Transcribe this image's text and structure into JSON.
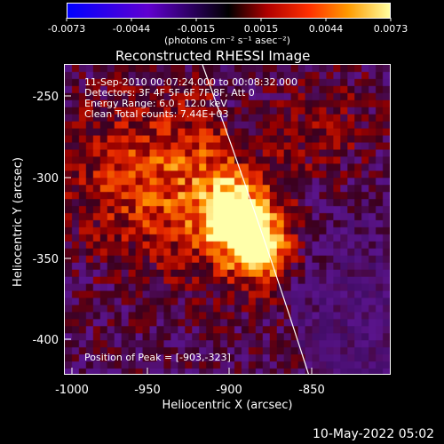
{
  "colorbar": {
    "ticks": [
      "-0.0073",
      "-0.0044",
      "-0.0015",
      "0.0015",
      "0.0044",
      "0.0073"
    ],
    "units": "(photons cm⁻² s⁻¹ asec⁻²)"
  },
  "title": "Reconstructed RHESSI Image",
  "info": {
    "line1": "11-Sep-2010 00:07:24.000 to 00:08:32.000",
    "line2": "Detectors: 3F 4F 5F 6F 7F 8F, Att 0",
    "line3": "Energy Range: 6.0 - 12.0 keV",
    "line4": "Clean    Total counts: 7.44E+03"
  },
  "peak_text": "Position of Peak = [-903,-323]",
  "x_axis": {
    "label": "Heliocentric X (arcsec)",
    "ticks": [
      "-1000",
      "-950",
      "-900",
      "-850"
    ]
  },
  "y_axis": {
    "label": "Heliocentric Y (arcsec)",
    "ticks": [
      "-250",
      "-300",
      "-350",
      "-400"
    ]
  },
  "timestamp": "10-May-2022 05:02",
  "chart_data": {
    "type": "heatmap",
    "title": "Reconstructed RHESSI Image",
    "xlabel": "Heliocentric X (arcsec)",
    "ylabel": "Heliocentric Y (arcsec)",
    "xlim": [
      -1003,
      -812
    ],
    "ylim": [
      -422,
      -232
    ],
    "colorbar_range": [
      -0.0073,
      0.0073
    ],
    "colorbar_ticks": [
      -0.0073,
      -0.0044,
      -0.0015,
      0.0015,
      0.0044,
      0.0073
    ],
    "peak": [
      -903,
      -323
    ],
    "colors": {
      "low": "#0000ff",
      "mid": "#000000",
      "high": "#ffffa0"
    }
  }
}
